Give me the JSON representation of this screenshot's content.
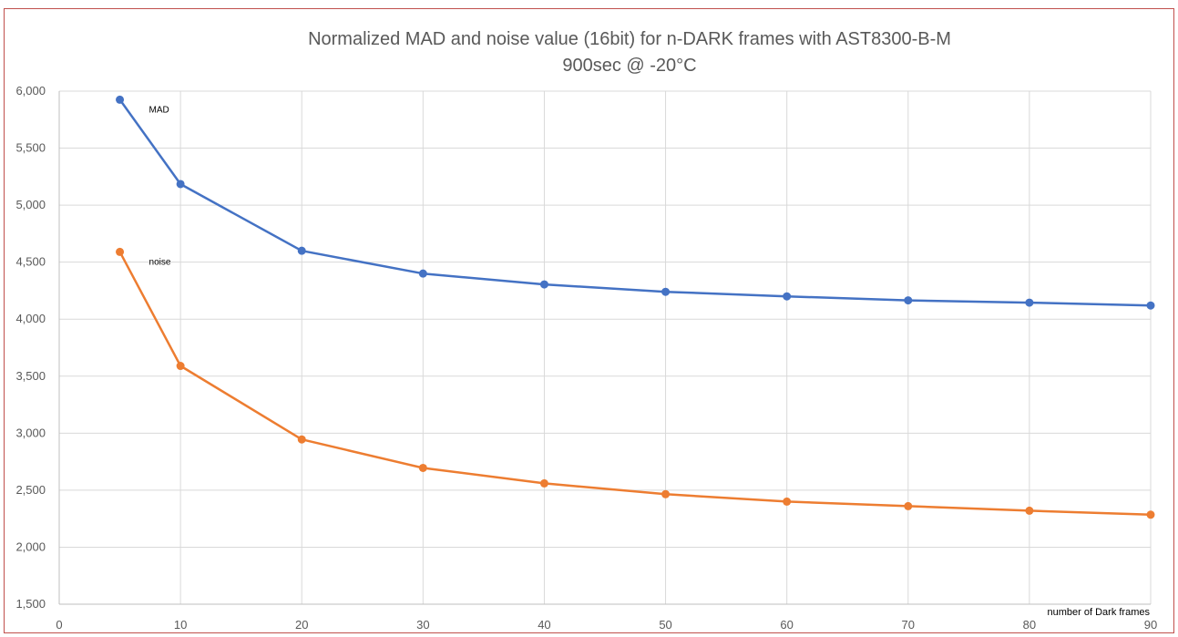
{
  "chart_data": {
    "type": "line",
    "title_line1": "Normalized MAD and noise value (16bit) for n-DARK frames with AST8300-B-M",
    "title_line2": "900sec @ -20°C",
    "xlabel": "number of Dark frames",
    "ylabel": "",
    "xlim": [
      0,
      90
    ],
    "ylim": [
      1500,
      6000
    ],
    "x_ticks": [
      0,
      10,
      20,
      30,
      40,
      50,
      60,
      70,
      80,
      90
    ],
    "y_ticks": [
      1500,
      2000,
      2500,
      3000,
      3500,
      4000,
      4500,
      5000,
      5500,
      6000
    ],
    "x_tick_labels": [
      "0",
      "10",
      "20",
      "30",
      "40",
      "50",
      "60",
      "70",
      "80",
      "90"
    ],
    "y_tick_labels": [
      "1,500",
      "2,000",
      "2,500",
      "3,000",
      "3,500",
      "4,000",
      "4,500",
      "5,000",
      "5,500",
      "6,000"
    ],
    "grid": true,
    "legend": "none",
    "series": [
      {
        "name": "MAD",
        "color": "#4472c4",
        "x": [
          5,
          10,
          20,
          30,
          40,
          50,
          60,
          70,
          80,
          90
        ],
        "y": [
          5925,
          5185,
          4600,
          4400,
          4305,
          4240,
          4200,
          4165,
          4145,
          4120
        ]
      },
      {
        "name": "noise",
        "color": "#ed7d31",
        "x": [
          5,
          10,
          20,
          30,
          40,
          50,
          60,
          70,
          80,
          90
        ],
        "y": [
          4590,
          3590,
          2945,
          2695,
          2560,
          2465,
          2400,
          2360,
          2320,
          2285
        ]
      }
    ]
  }
}
